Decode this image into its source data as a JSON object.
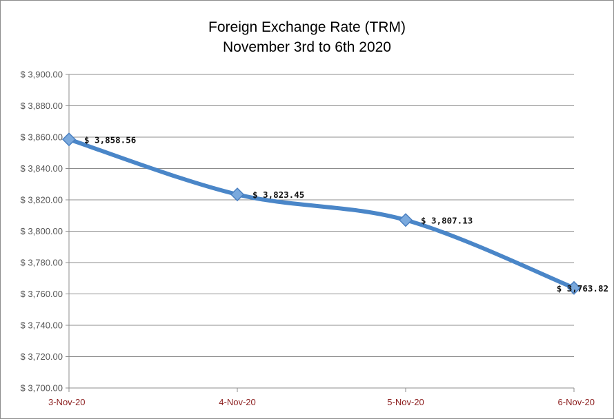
{
  "chart_data": {
    "type": "line",
    "title": [
      "Foreign Exchange Rate (TRM)",
      "November  3rd to 6th 2020"
    ],
    "xlabel": "",
    "ylabel": "",
    "categories": [
      "3-Nov-20",
      "4-Nov-20",
      "5-Nov-20",
      "6-Nov-20"
    ],
    "values": [
      3858.56,
      3823.45,
      3807.13,
      3763.82
    ],
    "data_labels": [
      "$ 3,858.56",
      "$ 3,823.45",
      "$ 3,807.13",
      "$ 3,763.82"
    ],
    "ylim": [
      3700,
      3900
    ],
    "ytick_step": 20,
    "ytick_labels": [
      "$ 3,700.00",
      "$ 3,720.00",
      "$ 3,740.00",
      "$ 3,760.00",
      "$ 3,780.00",
      "$ 3,800.00",
      "$ 3,820.00",
      "$ 3,840.00",
      "$ 3,860.00",
      "$ 3,880.00",
      "$ 3,900.00"
    ],
    "grid": true,
    "legend": "none",
    "colors": {
      "line": "#4a86c8",
      "marker": "#7aa9dd",
      "marker_edge": "#4a7fc0",
      "grid": "#8c8c8c",
      "xtick": "#8b1c1c"
    }
  }
}
